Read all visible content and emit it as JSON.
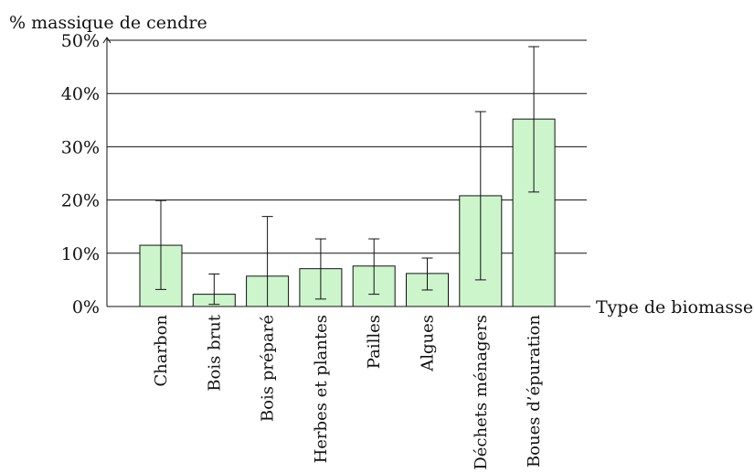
{
  "chart_data": {
    "type": "bar",
    "ylabel": "% massique de cendre",
    "xlabel": "Type de biomasse",
    "ylim": [
      0,
      50
    ],
    "y_ticks": [
      0,
      10,
      20,
      30,
      40,
      50
    ],
    "y_tick_labels": [
      "0%",
      "10%",
      "20%",
      "30%",
      "40%",
      "50%"
    ],
    "grid": "horizontal",
    "categories": [
      "Charbon",
      "Bois brut",
      "Bois préparé",
      "Herbes et plantes",
      "Pailles",
      "Algues",
      "Déchets ménagers",
      "Boues d’épuration"
    ],
    "values": [
      11.5,
      2.3,
      5.7,
      7.1,
      7.6,
      6.2,
      20.8,
      35.2
    ],
    "error_low": [
      3.2,
      0.4,
      0.0,
      1.4,
      2.3,
      3.1,
      5.0,
      21.5
    ],
    "error_high": [
      19.9,
      6.1,
      16.9,
      12.7,
      12.7,
      9.1,
      36.6,
      48.8
    ],
    "colors": {
      "bar_fill": "#ccf5cc",
      "bar_stroke": "#111111",
      "grid": "#111111"
    }
  }
}
